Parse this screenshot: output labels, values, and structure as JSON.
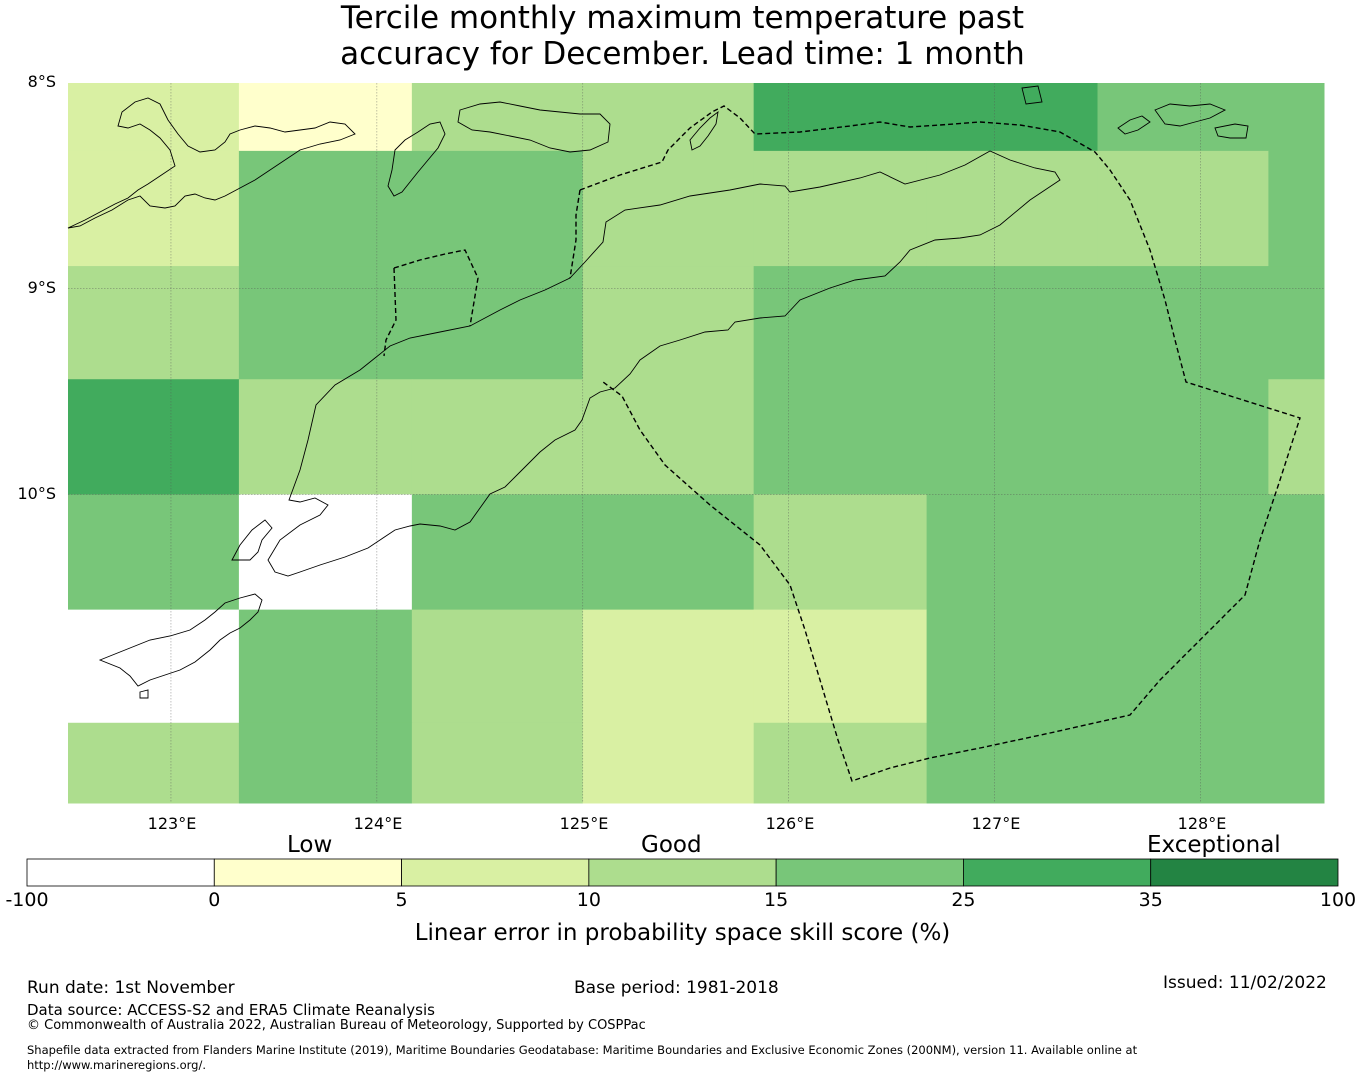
{
  "title": {
    "line1": "Tercile monthly maximum temperature past",
    "line2": "accuracy for December. Lead time: 1 month"
  },
  "map": {
    "lat_labels": [
      "8°S",
      "9°S",
      "10°S"
    ],
    "lon_labels": [
      "123°E",
      "124°E",
      "125°E",
      "126°E",
      "127°E",
      "128°E"
    ],
    "lon_range": [
      122.5,
      128.6
    ],
    "lat_range": [
      -8.0,
      -11.5
    ],
    "grid": {
      "col_edges_lon": [
        122.5,
        123.33,
        124.17,
        125.0,
        125.83,
        126.67,
        127.5,
        128.33,
        128.6
      ],
      "row_edges_lat": [
        -8.0,
        -8.33,
        -8.89,
        -9.44,
        -10.0,
        -10.56,
        -11.11,
        -11.5
      ],
      "categories": [
        [
          2,
          1,
          3,
          3,
          5,
          5,
          4,
          4
        ],
        [
          2,
          4,
          4,
          3,
          3,
          3,
          3,
          4
        ],
        [
          3,
          4,
          4,
          3,
          4,
          4,
          4,
          4
        ],
        [
          5,
          3,
          3,
          3,
          4,
          4,
          4,
          3
        ],
        [
          4,
          0,
          4,
          4,
          3,
          4,
          4,
          4
        ],
        [
          0,
          4,
          3,
          2,
          2,
          4,
          4,
          4
        ],
        [
          3,
          4,
          3,
          2,
          3,
          4,
          4,
          4
        ]
      ]
    }
  },
  "colorbar": {
    "tick_labels": [
      "-100",
      "0",
      "5",
      "10",
      "15",
      "25",
      "35",
      "100"
    ],
    "colors": [
      "#ffffff",
      "#ffffcc",
      "#d9f0a3",
      "#addd8e",
      "#78c679",
      "#41ab5d",
      "#238443"
    ],
    "category_labels": {
      "low": "Low",
      "good": "Good",
      "exceptional": "Exceptional"
    },
    "title": "Linear error in probability space skill score (%)"
  },
  "footer": {
    "run_date": "Run date: 1st November",
    "base_period": "Base period: 1981-2018",
    "issued": "Issued: 11/02/2022",
    "data_source": "Data source: ACCESS-S2 and ERA5 Climate Reanalysis",
    "copyright": "© Commonwealth of Australia 2022, Australian Bureau of Meteorology, Supported by COSPPac",
    "shapefile_line1": "Shapefile data extracted from Flanders Marine Institute (2019), Maritime Boundaries Geodatabase: Maritime Boundaries and Exclusive Economic Zones (200NM), version 11. Available online at",
    "shapefile_line2": "http://www.marineregions.org/."
  }
}
